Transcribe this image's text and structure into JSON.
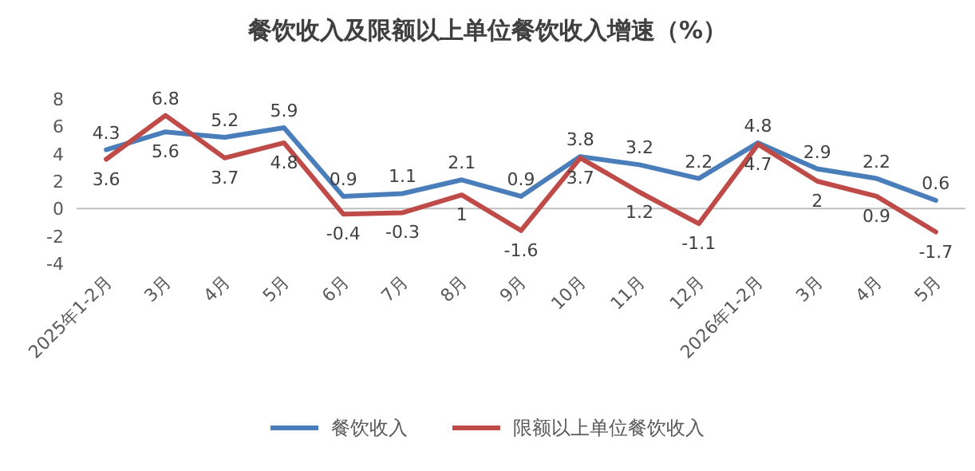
{
  "chart_data": {
    "type": "line",
    "title": "餐饮收入及限额以上单位餐饮收入增速（%）",
    "categories": [
      "2025年1-2月",
      "3月",
      "4月",
      "5月",
      "6月",
      "7月",
      "8月",
      "9月",
      "10月",
      "11月",
      "12月",
      "2026年1-2月",
      "3月",
      "4月",
      "5月"
    ],
    "series": [
      {
        "name": "餐饮收入",
        "color": "#4a7ebb",
        "values": [
          4.3,
          5.6,
          5.2,
          5.9,
          0.9,
          1.1,
          2.1,
          0.9,
          3.8,
          3.2,
          2.2,
          4.8,
          2.9,
          2.2,
          0.6
        ]
      },
      {
        "name": "限额以上单位餐饮收入",
        "color": "#be4b48",
        "values": [
          3.6,
          6.8,
          3.7,
          4.8,
          -0.4,
          -0.3,
          1,
          -1.6,
          3.7,
          1.2,
          -1.1,
          4.7,
          2,
          0.9,
          -1.7
        ]
      }
    ],
    "ylim": [
      -4,
      8
    ],
    "yticks": [
      -4,
      -2,
      0,
      2,
      4,
      6,
      8
    ],
    "data_labels": true,
    "legend": "bottom",
    "marker": "none",
    "line_style": "solid"
  }
}
